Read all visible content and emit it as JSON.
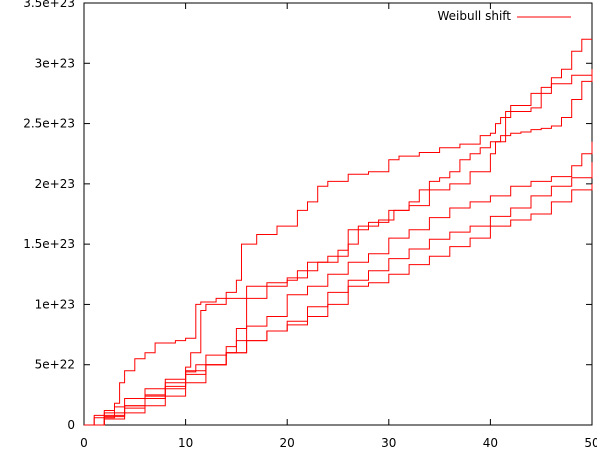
{
  "chart_data": {
    "type": "line",
    "title": "",
    "xlabel": "",
    "ylabel": "",
    "xlim": [
      0,
      50
    ],
    "ylim": [
      0,
      3.5e+23
    ],
    "xticks": [
      0,
      10,
      20,
      30,
      40,
      50
    ],
    "xtick_labels": [
      "0",
      "10",
      "20",
      "30",
      "40",
      "50"
    ],
    "yticks": [
      0,
      5e+22,
      1e+23,
      1.5e+23,
      2e+23,
      2.5e+23,
      3e+23,
      3.5e+23
    ],
    "ytick_labels": [
      "0",
      "5e+22",
      "1e+23",
      "1.5e+23",
      "2e+23",
      "2.5e+23",
      "3e+23",
      "3.5e+23"
    ],
    "grid": false,
    "legend": {
      "position": "top-right",
      "label": "Weibull shift"
    },
    "line_color": "#ff0000",
    "series": [
      {
        "x": [
          0,
          1,
          2,
          3,
          3.5,
          4,
          5,
          6,
          7,
          8,
          9,
          10,
          11,
          11.5,
          13,
          14,
          15,
          15.5,
          17,
          19,
          21,
          22,
          23,
          24,
          26,
          28,
          30,
          31,
          33,
          35,
          37,
          39,
          40,
          40.5,
          41,
          42,
          44,
          45,
          46,
          47,
          48,
          49,
          50
        ],
        "y": [
          0,
          8e+21,
          1.2e+22,
          1.8e+22,
          3.5e+22,
          4.5e+22,
          5.5e+22,
          6e+22,
          6.8e+22,
          6.8e+22,
          7e+22,
          7.2e+22,
          1e+23,
          1.02e+23,
          1.05e+23,
          1.1e+23,
          1.2e+23,
          1.5e+23,
          1.58e+23,
          1.65e+23,
          1.78e+23,
          1.85e+23,
          1.98e+23,
          2.02e+23,
          2.08e+23,
          2.1e+23,
          2.2e+23,
          2.23e+23,
          2.26e+23,
          2.3e+23,
          2.33e+23,
          2.4e+23,
          2.42e+23,
          2.5e+23,
          2.55e+23,
          2.6e+23,
          2.63e+23,
          2.8e+23,
          2.88e+23,
          2.95e+23,
          3.1e+23,
          3.2e+23,
          3.2e+23
        ]
      },
      {
        "x": [
          0,
          1,
          3,
          4,
          6,
          8,
          10,
          10.5,
          11.5,
          12,
          14,
          16,
          18,
          20,
          21,
          23,
          25,
          26,
          28,
          30,
          32,
          34,
          36,
          38,
          40,
          40.5,
          41.5,
          42,
          44,
          46,
          48,
          50
        ],
        "y": [
          0,
          6e+21,
          1.5e+22,
          2.2e+22,
          3e+22,
          3.8e+22,
          4.8e+22,
          6e+22,
          9.5e+22,
          1e+23,
          1.05e+23,
          1.15e+23,
          1.18e+23,
          1.2e+23,
          1.28e+23,
          1.35e+23,
          1.45e+23,
          1.62e+23,
          1.68e+23,
          1.78e+23,
          1.82e+23,
          1.95e+23,
          2e+23,
          2.1e+23,
          2.25e+23,
          2.35e+23,
          2.6e+23,
          2.65e+23,
          2.75e+23,
          2.83e+23,
          2.9e+23,
          2.95e+23
        ]
      },
      {
        "x": [
          0,
          2,
          4,
          6,
          8,
          10,
          12,
          14,
          15,
          16,
          18,
          20,
          22,
          24,
          26,
          27,
          29,
          30.5,
          32,
          33,
          34,
          35,
          36,
          37,
          38,
          39,
          40,
          41,
          42,
          43,
          44,
          45,
          46,
          47,
          48,
          49,
          50
        ],
        "y": [
          0,
          1e+22,
          1.6e+22,
          2.5e+22,
          3.5e+22,
          4.5e+22,
          5e+22,
          6e+22,
          8e+22,
          1.05e+23,
          1.15e+23,
          1.22e+23,
          1.35e+23,
          1.4e+23,
          1.5e+23,
          1.65e+23,
          1.7e+23,
          1.78e+23,
          1.85e+23,
          1.95e+23,
          2.02e+23,
          2.05e+23,
          2.1e+23,
          2.2e+23,
          2.25e+23,
          2.3e+23,
          2.35e+23,
          2.4e+23,
          2.42e+23,
          2.43e+23,
          2.45e+23,
          2.46e+23,
          2.48e+23,
          2.55e+23,
          2.7e+23,
          2.85e+23,
          2.95e+23
        ]
      },
      {
        "x": [
          0,
          2,
          4,
          6,
          8,
          10,
          11,
          12,
          14,
          15,
          16,
          18,
          20,
          22,
          24,
          26,
          28,
          30,
          32,
          34,
          36,
          38,
          40,
          42,
          44,
          46,
          48,
          49,
          50
        ],
        "y": [
          0,
          8e+21,
          1.6e+22,
          2.4e+22,
          3.2e+22,
          4.4e+22,
          5e+22,
          5.8e+22,
          6.5e+22,
          7e+22,
          8.2e+22,
          9e+22,
          1.08e+23,
          1.15e+23,
          1.25e+23,
          1.35e+23,
          1.42e+23,
          1.55e+23,
          1.62e+23,
          1.72e+23,
          1.8e+23,
          1.85e+23,
          1.9e+23,
          1.98e+23,
          2.02e+23,
          2.06e+23,
          2.15e+23,
          2.25e+23,
          2.35e+23
        ]
      },
      {
        "x": [
          0,
          2,
          4,
          6,
          8,
          10,
          12,
          14,
          16,
          18,
          20,
          22,
          24,
          26,
          28,
          30,
          32,
          34,
          36,
          38,
          40,
          42,
          44,
          46,
          48,
          50
        ],
        "y": [
          0,
          7e+21,
          1.4e+22,
          2.2e+22,
          3e+22,
          4.2e+22,
          5e+22,
          6e+22,
          7e+22,
          7.8e+22,
          8.6e+22,
          9.8e+22,
          1.1e+23,
          1.2e+23,
          1.28e+23,
          1.38e+23,
          1.46e+23,
          1.54e+23,
          1.6e+23,
          1.65e+23,
          1.73e+23,
          1.8e+23,
          1.9e+23,
          1.98e+23,
          2.05e+23,
          2.18e+23
        ]
      },
      {
        "x": [
          0,
          2,
          4,
          6,
          8,
          10,
          12,
          14,
          16,
          18,
          20,
          22,
          24,
          26,
          28,
          30,
          32,
          34,
          36,
          38,
          40,
          42,
          44,
          46,
          48,
          50
        ],
        "y": [
          0,
          5e+21,
          1e+22,
          1.6e+22,
          2.4e+22,
          3.5e+22,
          5e+22,
          6e+22,
          7e+22,
          7.8e+22,
          8.3e+22,
          9e+22,
          1e+23,
          1.15e+23,
          1.18e+23,
          1.25e+23,
          1.33e+23,
          1.4e+23,
          1.48e+23,
          1.55e+23,
          1.65e+23,
          1.7e+23,
          1.75e+23,
          1.85e+23,
          1.95e+23,
          2e+23
        ]
      }
    ]
  }
}
